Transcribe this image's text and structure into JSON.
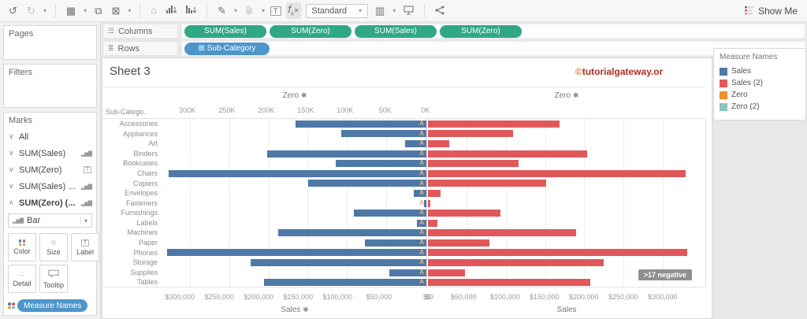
{
  "toolbar": {
    "view_mode": "Standard",
    "show_me_label": "Show Me"
  },
  "shelves": {
    "columns_label": "Columns",
    "rows_label": "Rows",
    "column_pills": [
      "SUM(Sales)",
      "SUM(Zero)",
      "SUM(Sales)",
      "SUM(Zero)"
    ],
    "row_pills": [
      "Sub-Category"
    ]
  },
  "left_panel": {
    "pages_label": "Pages",
    "filters_label": "Filters",
    "marks_label": "Marks",
    "marks_items": [
      {
        "label": "All",
        "icon": "none",
        "expanded": false
      },
      {
        "label": "SUM(Sales)",
        "icon": "bars",
        "expanded": false
      },
      {
        "label": "SUM(Zero)",
        "icon": "text",
        "expanded": false
      },
      {
        "label": "SUM(Sales) ...",
        "icon": "bars",
        "expanded": false
      },
      {
        "label": "SUM(Zero) (...",
        "icon": "bars",
        "expanded": true
      }
    ],
    "mark_type": "Bar",
    "buttons": [
      "Color",
      "Size",
      "Label",
      "Detail",
      "Tooltip"
    ],
    "measure_pill": "Measure Names"
  },
  "sheet": {
    "title": "Sheet 3",
    "watermark_c": "©",
    "watermark_text": "tutorialgateway.or",
    "annotation_badge": ">17 negative"
  },
  "legend": {
    "title": "Measure Names",
    "items": [
      {
        "label": "Sales",
        "color": "#4e79a7"
      },
      {
        "label": "Sales (2)",
        "color": "#e0585a"
      },
      {
        "label": "Zero",
        "color": "#f28e2b"
      },
      {
        "label": "Zero (2)",
        "color": "#8fc4bc"
      }
    ]
  },
  "chart_data": {
    "type": "bar",
    "orientation": "diverging-horizontal",
    "row_header": "Sub-Catego..",
    "categories": [
      "Accessories",
      "Appliances",
      "Art",
      "Binders",
      "Bookcases",
      "Chairs",
      "Copiers",
      "Envelopes",
      "Fasteners",
      "Furnishings",
      "Labels",
      "Machines",
      "Paper",
      "Phones",
      "Storage",
      "Supplies",
      "Tables"
    ],
    "series": [
      {
        "name": "Sales",
        "color": "#4e79a7",
        "side": "left",
        "values": [
          167000,
          108000,
          27000,
          203000,
          115000,
          328000,
          150000,
          16500,
          3000,
          92000,
          12500,
          189000,
          78500,
          330000,
          224000,
          47000,
          207000
        ]
      },
      {
        "name": "Sales (2)",
        "color": "#e0585a",
        "side": "right",
        "values": [
          167000,
          108000,
          27000,
          203000,
          115000,
          328000,
          150000,
          16500,
          3000,
          92000,
          12500,
          189000,
          78500,
          330000,
          224000,
          47000,
          207000
        ]
      }
    ],
    "mark_label": "A",
    "mark_label_color": "#e3b27e",
    "left_axis": {
      "top_title": "Zero",
      "top_pinned": true,
      "tick_labels": [
        "300K",
        "250K",
        "200K",
        "150K",
        "100K",
        "50K",
        "0K"
      ],
      "tick_values": [
        300000,
        250000,
        200000,
        150000,
        100000,
        50000,
        0
      ],
      "bottom_title": "Sales",
      "bottom_pinned": true,
      "bottom_tick_labels": [
        "$300,000",
        "$250,000",
        "$200,000",
        "$150,000",
        "$100,000",
        "$50,000",
        "$0"
      ],
      "domain": [
        0,
        336000
      ],
      "reversed": true
    },
    "right_axis": {
      "top_title": "Zero",
      "top_pinned": true,
      "bottom_title": "Sales",
      "bottom_pinned": false,
      "bottom_tick_labels": [
        "$0",
        "$50,000",
        "$100,000",
        "$150,000",
        "$200,000",
        "$250,000",
        "$300,000"
      ],
      "bottom_tick_values": [
        0,
        50000,
        100000,
        150000,
        200000,
        250000,
        300000
      ],
      "domain": [
        0,
        354000
      ],
      "reversed": false
    },
    "gridlines_every": 50000,
    "annotation": ">17 negative"
  }
}
